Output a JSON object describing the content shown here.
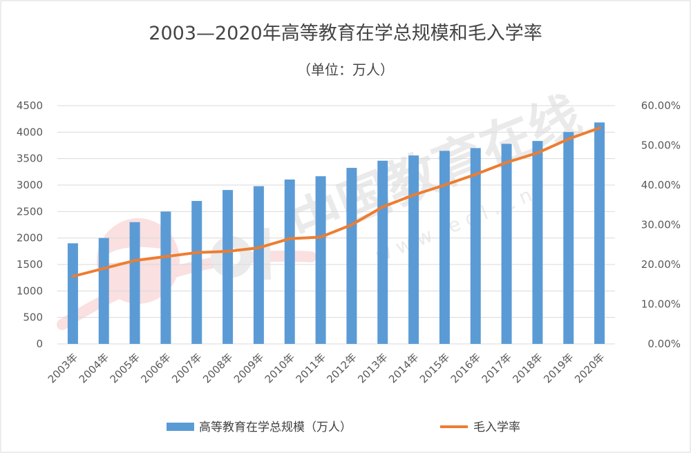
{
  "chart_data": {
    "type": "bar",
    "title": "2003—2020年高等教育在学总规模和毛入学率",
    "subtitle": "（单位：万人）",
    "categories": [
      "2003年",
      "2004年",
      "2005年",
      "2006年",
      "2007年",
      "2008年",
      "2009年",
      "2010年",
      "2011年",
      "2012年",
      "2013年",
      "2014年",
      "2015年",
      "2016年",
      "2017年",
      "2018年",
      "2019年",
      "2020年"
    ],
    "series": [
      {
        "name": "高等教育在学总规模（万人）",
        "type": "bar",
        "axis": "left",
        "color": "#5b9bd5",
        "values": [
          1900,
          2000,
          2300,
          2500,
          2700,
          2907,
          2979,
          3105,
          3167,
          3325,
          3460,
          3559,
          3647,
          3699,
          3779,
          3833,
          4002,
          4183
        ]
      },
      {
        "name": "毛入学率",
        "type": "line",
        "axis": "right",
        "color": "#ed7d31",
        "values": [
          17.0,
          19.0,
          21.0,
          22.0,
          23.0,
          23.3,
          24.2,
          26.5,
          26.9,
          30.0,
          34.5,
          37.5,
          40.0,
          42.7,
          45.7,
          48.1,
          51.6,
          54.4
        ]
      }
    ],
    "y_left": {
      "min": 0,
      "max": 4500,
      "step": 500,
      "ticks": [
        "0",
        "500",
        "1000",
        "1500",
        "2000",
        "2500",
        "3000",
        "3500",
        "4000",
        "4500"
      ]
    },
    "y_right": {
      "min": 0,
      "max": 60,
      "step": 10,
      "unit": "%",
      "ticks": [
        "0.00%",
        "10.00%",
        "20.00%",
        "30.00%",
        "40.00%",
        "50.00%",
        "60.00%"
      ]
    },
    "grid": true,
    "legend_position": "bottom",
    "watermark": {
      "text": "中国教育在线",
      "url_text": "w w w . e o l . c n",
      "logo": "eol"
    }
  }
}
